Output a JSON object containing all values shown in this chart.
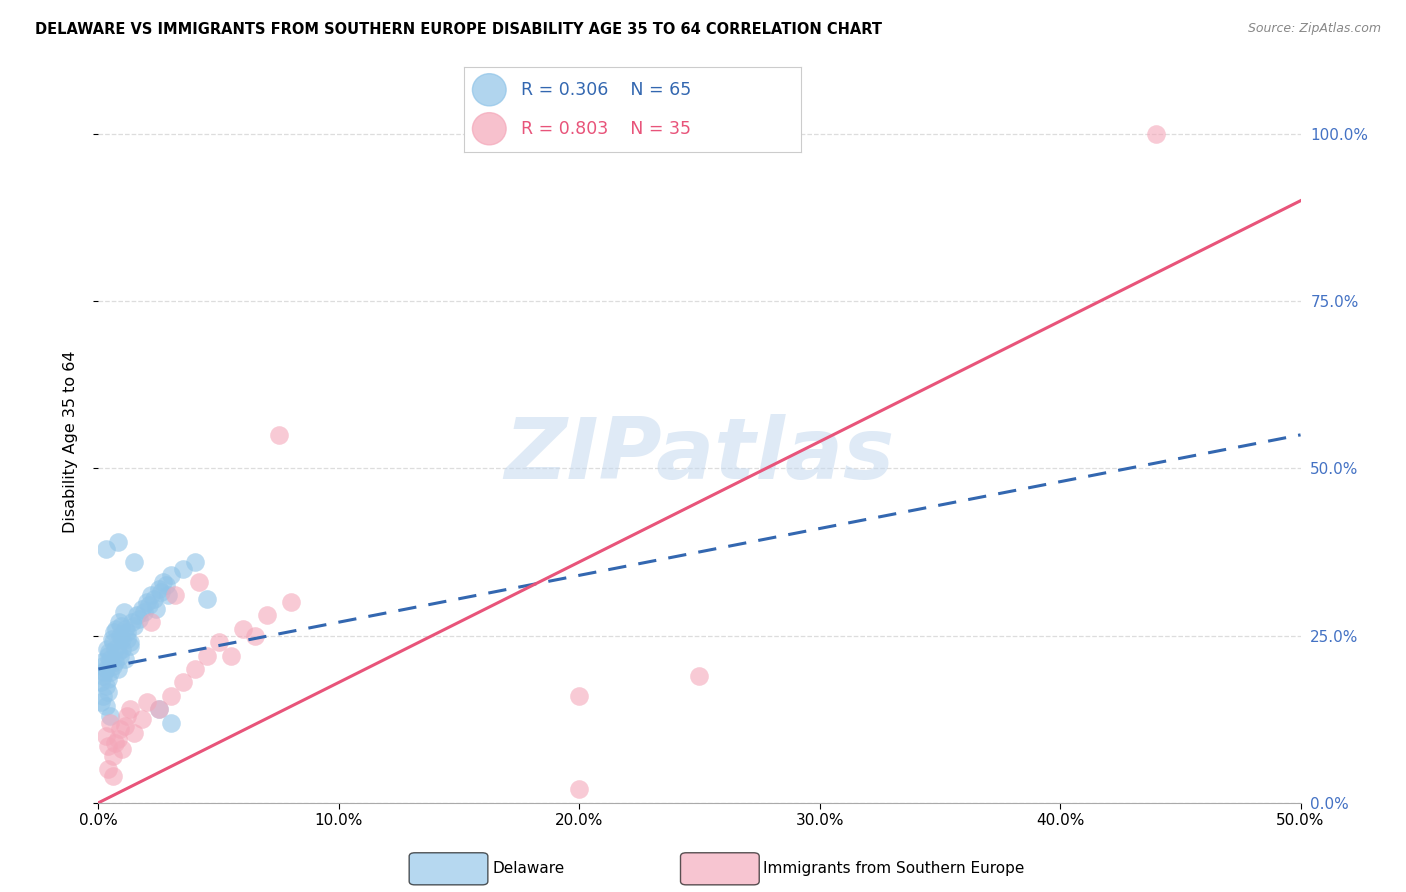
{
  "title": "DELAWARE VS IMMIGRANTS FROM SOUTHERN EUROPE DISABILITY AGE 35 TO 64 CORRELATION CHART",
  "source": "Source: ZipAtlas.com",
  "ylabel": "Disability Age 35 to 64",
  "xlim": [
    0,
    50
  ],
  "ylim": [
    0,
    108
  ],
  "x_tick_vals": [
    0,
    10,
    20,
    30,
    40,
    50
  ],
  "y_tick_vals": [
    0,
    25,
    50,
    75,
    100
  ],
  "legend_blue_R": "R = 0.306",
  "legend_blue_N": "N = 65",
  "legend_pink_R": "R = 0.803",
  "legend_pink_N": "N = 35",
  "blue_scatter_color": "#90c4e8",
  "pink_scatter_color": "#f4a7b9",
  "blue_line_color": "#3367b0",
  "pink_line_color": "#e8547a",
  "grid_color": "#dddddd",
  "watermark": "ZIPatlas",
  "blue_pts": [
    [
      0.3,
      20.0
    ],
    [
      0.4,
      22.0
    ],
    [
      0.5,
      21.5
    ],
    [
      0.6,
      24.0
    ],
    [
      0.7,
      23.0
    ],
    [
      0.8,
      22.5
    ],
    [
      0.9,
      25.0
    ],
    [
      1.0,
      24.5
    ],
    [
      1.1,
      26.0
    ],
    [
      1.2,
      25.5
    ],
    [
      1.3,
      24.0
    ],
    [
      1.4,
      27.0
    ],
    [
      1.5,
      26.5
    ],
    [
      1.6,
      28.0
    ],
    [
      1.7,
      27.5
    ],
    [
      1.8,
      29.0
    ],
    [
      1.9,
      28.5
    ],
    [
      2.0,
      30.0
    ],
    [
      2.1,
      29.5
    ],
    [
      2.2,
      31.0
    ],
    [
      2.3,
      30.5
    ],
    [
      2.4,
      29.0
    ],
    [
      2.5,
      32.0
    ],
    [
      2.6,
      31.5
    ],
    [
      2.7,
      33.0
    ],
    [
      2.8,
      32.5
    ],
    [
      2.9,
      31.0
    ],
    [
      3.0,
      34.0
    ],
    [
      3.5,
      35.0
    ],
    [
      4.0,
      36.0
    ],
    [
      0.2,
      19.0
    ],
    [
      0.3,
      17.5
    ],
    [
      0.4,
      18.5
    ],
    [
      0.5,
      19.5
    ],
    [
      0.6,
      20.5
    ],
    [
      0.7,
      21.0
    ],
    [
      0.8,
      20.0
    ],
    [
      0.9,
      22.0
    ],
    [
      1.0,
      23.0
    ],
    [
      1.1,
      21.5
    ],
    [
      1.2,
      24.5
    ],
    [
      1.3,
      23.5
    ],
    [
      0.1,
      18.0
    ],
    [
      0.2,
      20.5
    ],
    [
      0.15,
      21.0
    ],
    [
      0.25,
      19.5
    ],
    [
      0.35,
      23.0
    ],
    [
      0.45,
      22.5
    ],
    [
      0.55,
      24.5
    ],
    [
      0.65,
      25.5
    ],
    [
      0.75,
      26.0
    ],
    [
      0.85,
      27.0
    ],
    [
      0.95,
      26.5
    ],
    [
      1.05,
      28.5
    ],
    [
      0.1,
      15.0
    ],
    [
      0.2,
      16.0
    ],
    [
      0.3,
      14.5
    ],
    [
      0.4,
      16.5
    ],
    [
      3.0,
      12.0
    ],
    [
      0.5,
      13.0
    ],
    [
      0.3,
      38.0
    ],
    [
      1.5,
      36.0
    ],
    [
      0.8,
      39.0
    ],
    [
      2.5,
      14.0
    ],
    [
      4.5,
      30.5
    ]
  ],
  "pink_pts": [
    [
      0.3,
      10.0
    ],
    [
      0.5,
      12.0
    ],
    [
      0.7,
      9.0
    ],
    [
      0.9,
      11.0
    ],
    [
      1.0,
      8.0
    ],
    [
      1.2,
      13.0
    ],
    [
      1.5,
      10.5
    ],
    [
      1.8,
      12.5
    ],
    [
      2.0,
      15.0
    ],
    [
      2.5,
      14.0
    ],
    [
      3.0,
      16.0
    ],
    [
      3.5,
      18.0
    ],
    [
      4.0,
      20.0
    ],
    [
      4.5,
      22.0
    ],
    [
      5.0,
      24.0
    ],
    [
      5.5,
      22.0
    ],
    [
      6.0,
      26.0
    ],
    [
      6.5,
      25.0
    ],
    [
      7.0,
      28.0
    ],
    [
      8.0,
      30.0
    ],
    [
      0.4,
      8.5
    ],
    [
      0.6,
      7.0
    ],
    [
      0.8,
      9.5
    ],
    [
      1.1,
      11.5
    ],
    [
      1.3,
      14.0
    ],
    [
      2.2,
      27.0
    ],
    [
      3.2,
      31.0
    ],
    [
      4.2,
      33.0
    ],
    [
      20.0,
      16.0
    ],
    [
      25.0,
      19.0
    ],
    [
      0.4,
      5.0
    ],
    [
      0.6,
      4.0
    ],
    [
      44.0,
      100.0
    ],
    [
      20.0,
      2.0
    ],
    [
      7.5,
      55.0
    ]
  ]
}
